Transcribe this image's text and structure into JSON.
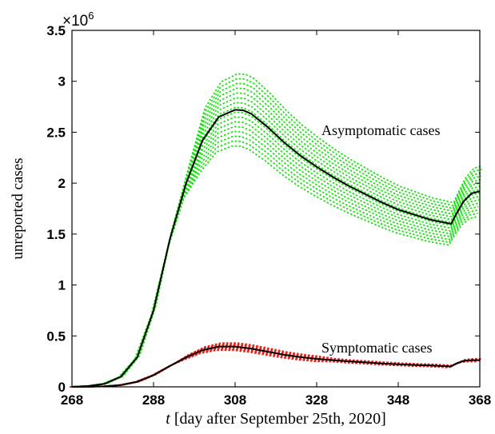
{
  "chart_data": {
    "type": "line",
    "xlabel_var": "t",
    "xlabel_rest": " [day after September 25th, 2020]",
    "ylabel": "unreported cases",
    "y_exponent": "×10",
    "y_exponent_power": "6",
    "xlim": [
      268,
      368
    ],
    "ylim": [
      0,
      3500000
    ],
    "xticks": [
      "268",
      "288",
      "308",
      "328",
      "348",
      "368"
    ],
    "yticks": [
      "0",
      "0.5",
      "1",
      "1.5",
      "2",
      "2.5",
      "3",
      "3.5"
    ],
    "annotations": {
      "asymptomatic": "Asymptomatic cases",
      "symptomatic": "Symptomatic cases"
    },
    "colors": {
      "asymptomatic_runs": "#22e01a",
      "symptomatic_runs": "#e8231c",
      "mean": "#000000"
    },
    "series": [
      {
        "group": "asymptomatic-mean",
        "x": [
          268,
          272,
          276,
          280,
          284,
          288,
          292,
          296,
          300,
          304,
          308,
          310,
          312,
          316,
          320,
          324,
          328,
          332,
          336,
          340,
          344,
          348,
          352,
          356,
          361,
          362,
          364,
          366,
          368
        ],
        "values": [
          0,
          8000,
          30000,
          100000,
          290000,
          750000,
          1450000,
          2000000,
          2420000,
          2650000,
          2720000,
          2715000,
          2680000,
          2550000,
          2400000,
          2270000,
          2160000,
          2060000,
          1970000,
          1890000,
          1810000,
          1740000,
          1690000,
          1640000,
          1600000,
          1680000,
          1820000,
          1900000,
          1920000
        ]
      },
      {
        "group": "symptomatic-mean",
        "x": [
          268,
          272,
          276,
          280,
          284,
          288,
          292,
          296,
          300,
          304,
          308,
          312,
          316,
          320,
          324,
          328,
          332,
          336,
          340,
          344,
          348,
          352,
          356,
          361,
          362,
          364,
          366,
          368
        ],
        "values": [
          0,
          1500,
          5000,
          18000,
          50000,
          115000,
          205000,
          290000,
          360000,
          395000,
          395000,
          375000,
          345000,
          315000,
          292000,
          275000,
          262000,
          250000,
          240000,
          230000,
          222000,
          215000,
          210000,
          200000,
          225000,
          255000,
          262000,
          262000
        ]
      }
    ]
  }
}
